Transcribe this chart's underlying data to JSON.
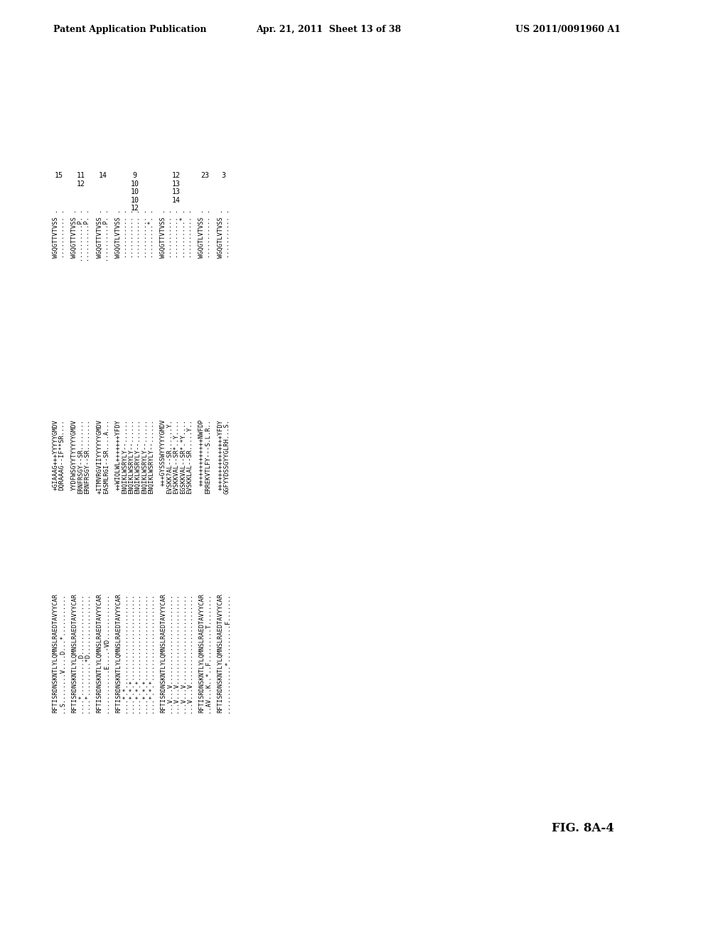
{
  "header_left": "Patent Application Publication",
  "header_mid": "Apr. 21, 2011  Sheet 13 of 38",
  "header_right": "US 2011/0091960 A1",
  "figure_label": "FIG. 8A-4",
  "background_color": "#ffffff",
  "text_color": "#000000",
  "fontsize": 6.2,
  "groups": [
    {
      "num": "15",
      "lines": [
        [
          "RFTISRDNSKNTLYLQMNSLRAEDTAVYYCAR",
          "+GIAAAG+++YYYYYGMDV",
          "WGQGTTVTVSS",
          "......."
        ],
        [
          "..S........V....D...*...........",
          "DQRAAAG--IF**SR....",
          "...........",
          "......."
        ]
      ]
    },
    {
      "num": "11\n12",
      "lines": [
        [
          "RFTISRDNSKNTLYLQMNSLRAEDTAVYYCAR",
          "YYDFWSGYYTYYYYYGMDV",
          "WGQGTTVTVSS",
          "......."
        ],
        [
          "....*..........D................",
          "ERNFRSGY--SR........",
          "..........P.",
          "......."
        ],
        [
          "....*.........*D................",
          "ERNFRSGY--SR........",
          "..........P.",
          "......."
        ]
      ]
    },
    {
      "num": "14",
      "lines": [
        [
          "RFTISRDNSKNTLYLQMNSLRAEDTAVYYCAR",
          "+ITMVRGVIIYYYYYYGMDV",
          "WGQGTTVTVSS",
          "......."
        ],
        [
          "............E....-VD............",
          "EASMLRGI--SR....A...",
          "..........P.",
          "......."
        ]
      ]
    },
    {
      "num": "9\n10\n10\n10\n12",
      "lines": [
        [
          "RFTISRDNSKNTLYLQMNSLRAEDTAVYYCAR",
          "++WIQLWL+++++++YFDY",
          "WGQGTLVTVSS",
          "......."
        ],
        [
          "....*.*.........................",
          "ENQIKLWSRYLY--......",
          "...........",
          "......."
        ],
        [
          "....*.*.*.......................",
          "ENQIKLWSRYLY--......",
          "...........",
          "......."
        ],
        [
          "....*.*.*.......................",
          "ENQIKLWSRYLY--......",
          "...........",
          "......."
        ],
        [
          "....*.*.*.......................",
          "ENQIKLWSRYLY--......",
          "...........",
          "......."
        ],
        [
          "....*.*.*.......................",
          "ENQIKLWSRYLY--......",
          ".........*.",
          "......."
        ]
      ]
    },
    {
      "num": "12\n13\n13\n14",
      "lines": [
        [
          "RFTISRDNSKNTLYLQMNSLRAEDTAVYYCAR",
          "+++GYSSSWYYYYYGMDV",
          "WGQGTTVTVSS",
          "......."
        ],
        [
          "...V...V........................",
          "EVSKK?AL--SR......Y.",
          "...........",
          "......."
        ],
        [
          "...V...V........................",
          "EVSKKVAL--SR*..Y....",
          "...........",
          "......."
        ],
        [
          "...V...V........................",
          "EGSKKVAL--SR*.*Y....",
          "..........*",
          "......."
        ],
        [
          "...V...V........................",
          "EVSKKLAL--SR.....Y..",
          "...........",
          "......."
        ]
      ]
    },
    {
      "num": "23",
      "lines": [
        [
          "RFTISRDNSKNTLYLQMNSLRAEDTAVYYCAR",
          "+++++++++++++NWFDP",
          "WGQGTLVTVSS",
          "......."
        ],
        [
          "..AV...K..*..F.........T........",
          "ERREKVTLFY---S.L.R..",
          "...........",
          "......."
        ]
      ]
    },
    {
      "num": "3",
      "lines": [
        [
          "RFTISRDNSKNTLYLQMNSLRAEDTAVYYCAR",
          "+++++++++++++++YFDY",
          "WGQGTLVTVSS",
          "......."
        ],
        [
          ".............*..........F.......",
          "GGFYYDSSGYYGLRH...S.",
          "...........",
          "......."
        ]
      ]
    }
  ]
}
